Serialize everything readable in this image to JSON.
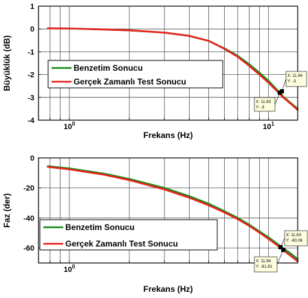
{
  "chart_data": [
    {
      "type": "line",
      "xlabel": "Frekans (Hz)",
      "ylabel": "Büyüklük (dB)",
      "xscale": "log",
      "xlim": [
        0.7,
        14
      ],
      "ylim": [
        -4,
        1
      ],
      "xtick_labels": [
        {
          "base": "10",
          "exp": "0"
        },
        {
          "base": "10",
          "exp": "1"
        }
      ],
      "ytick_labels": [
        "1",
        "0",
        "-1",
        "-2",
        "-3",
        "-4"
      ],
      "ytick_values": [
        1,
        0,
        -1,
        -2,
        -3,
        -4
      ],
      "grid": true,
      "legend_position": "lower-left",
      "series": [
        {
          "name": "Benzetim Sonucu",
          "color": "#1a8a1a",
          "x": [
            0.78,
            1.0,
            1.5,
            2.0,
            3.0,
            4.0,
            5.0,
            5.5,
            6.0,
            7.0,
            8.0,
            9.0,
            10.0,
            11.0,
            11.94,
            13.0,
            14.0
          ],
          "y": [
            0.03,
            0.02,
            -0.02,
            -0.06,
            -0.16,
            -0.3,
            -0.52,
            -0.7,
            -0.85,
            -1.18,
            -1.55,
            -1.92,
            -2.28,
            -2.66,
            -3.0,
            -3.27,
            -3.5
          ]
        },
        {
          "name": "Gerçek Zamanlı Test Sonucu",
          "color": "#e8231d",
          "x": [
            0.78,
            1.0,
            1.5,
            2.0,
            3.0,
            4.0,
            5.0,
            5.5,
            6.0,
            7.0,
            8.0,
            9.0,
            10.0,
            11.0,
            11.83,
            13.0,
            14.0
          ],
          "y": [
            0.03,
            0.02,
            -0.02,
            -0.06,
            -0.16,
            -0.3,
            -0.52,
            -0.7,
            -0.87,
            -1.22,
            -1.62,
            -2.0,
            -2.36,
            -2.72,
            -3.0,
            -3.3,
            -3.55
          ]
        }
      ],
      "annotations": [
        {
          "lines": [
            "X: 11.94",
            "Y: -3"
          ],
          "x": 11.94,
          "y": -3
        },
        {
          "lines": [
            "X: 11.83",
            "Y: -3"
          ],
          "x": 11.83,
          "y": -3
        }
      ]
    },
    {
      "type": "line",
      "xlabel": "Frekans (Hz)",
      "ylabel": "Faz (der)",
      "xscale": "log",
      "xlim": [
        0.7,
        14
      ],
      "ylim": [
        -70,
        0
      ],
      "xtick_labels": [
        {
          "base": "10",
          "exp": "0"
        },
        {
          "base": "10",
          "exp": ""
        }
      ],
      "ytick_labels": [
        "0",
        "-20",
        "-40",
        "-60"
      ],
      "ytick_values": [
        0,
        -20,
        -40,
        -60
      ],
      "grid": true,
      "legend_position": "lower-left",
      "series": [
        {
          "name": "Benzetim Sonucu",
          "color": "#1a8a1a",
          "x": [
            0.78,
            1.0,
            1.5,
            2.0,
            3.0,
            4.0,
            5.0,
            6.0,
            7.0,
            8.0,
            9.0,
            10.0,
            11.0,
            11.83,
            13.0,
            14.0
          ],
          "y": [
            -5.5,
            -7.0,
            -10.5,
            -14.0,
            -20.0,
            -25.5,
            -30.5,
            -35.5,
            -40.0,
            -44.5,
            -49.0,
            -53.0,
            -57.0,
            -60.06,
            -64.0,
            -67.5
          ]
        },
        {
          "name": "Gerçek Zamanlı Test Sonucu",
          "color": "#e8231d",
          "x": [
            0.78,
            1.0,
            1.5,
            2.0,
            3.0,
            4.0,
            5.0,
            6.0,
            7.0,
            8.0,
            9.0,
            10.0,
            11.0,
            11.94,
            13.0,
            14.0
          ],
          "y": [
            -6.0,
            -7.6,
            -11.2,
            -14.8,
            -21.0,
            -26.5,
            -31.5,
            -36.3,
            -40.8,
            -45.3,
            -49.8,
            -54.0,
            -58.0,
            -61.81,
            -65.5,
            -69.0
          ]
        }
      ],
      "annotations": [
        {
          "lines": [
            "X: 11.83",
            "Y: -60.06"
          ],
          "x": 11.83,
          "y": -60.06
        },
        {
          "lines": [
            "X: 11.94",
            "Y: -61.81"
          ],
          "x": 11.94,
          "y": -61.81
        }
      ]
    }
  ]
}
